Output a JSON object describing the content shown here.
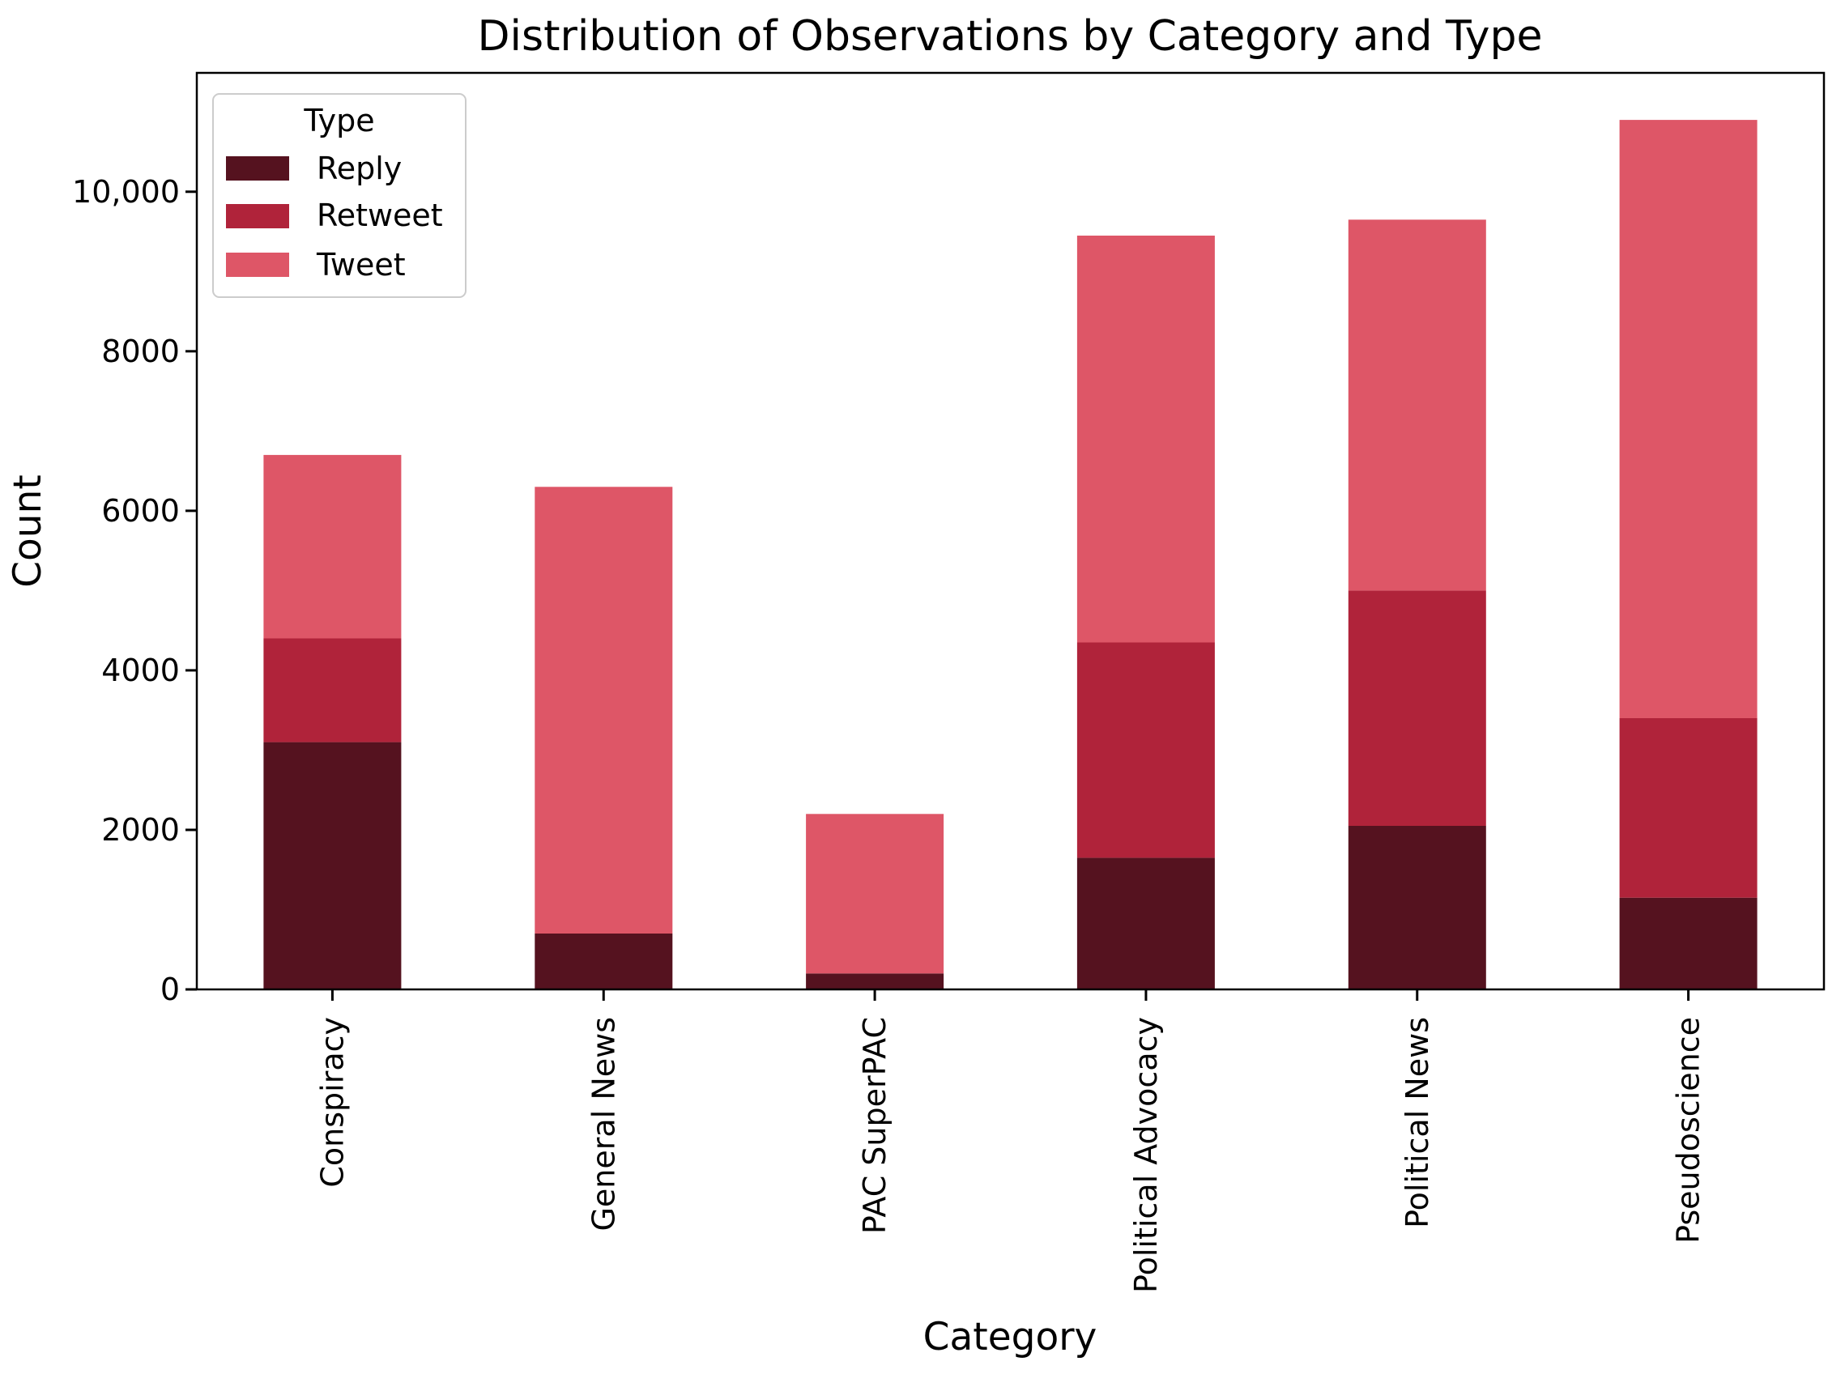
{
  "chart_data": {
    "type": "bar",
    "stacked": true,
    "title": "Distribution of Observations by Category and Type",
    "xlabel": "Category",
    "ylabel": "Count",
    "categories": [
      "Conspiracy",
      "General News",
      "PAC SuperPAC",
      "Political Advocacy",
      "Political News",
      "Pseudoscience"
    ],
    "series": [
      {
        "name": "Reply",
        "color": "#55121F",
        "values": [
          3100,
          700,
          200,
          1650,
          2050,
          1150
        ]
      },
      {
        "name": "Retweet",
        "color": "#B0233A",
        "values": [
          1300,
          0,
          0,
          2700,
          2950,
          2250
        ]
      },
      {
        "name": "Tweet",
        "color": "#DE5667",
        "values": [
          2300,
          5600,
          2000,
          5100,
          4650,
          7500
        ]
      }
    ],
    "totals": [
      6700,
      6300,
      2200,
      9450,
      9650,
      10900
    ],
    "ylim": [
      0,
      11490
    ],
    "yticks": [
      {
        "value": 0,
        "label": "0"
      },
      {
        "value": 2000,
        "label": "2000"
      },
      {
        "value": 4000,
        "label": "4000"
      },
      {
        "value": 6000,
        "label": "6000"
      },
      {
        "value": 8000,
        "label": "8000"
      },
      {
        "value": 10000,
        "label": "10,000"
      }
    ],
    "legend": {
      "title": "Type",
      "position": "upper left"
    },
    "grid": false,
    "background": "#ffffff"
  }
}
